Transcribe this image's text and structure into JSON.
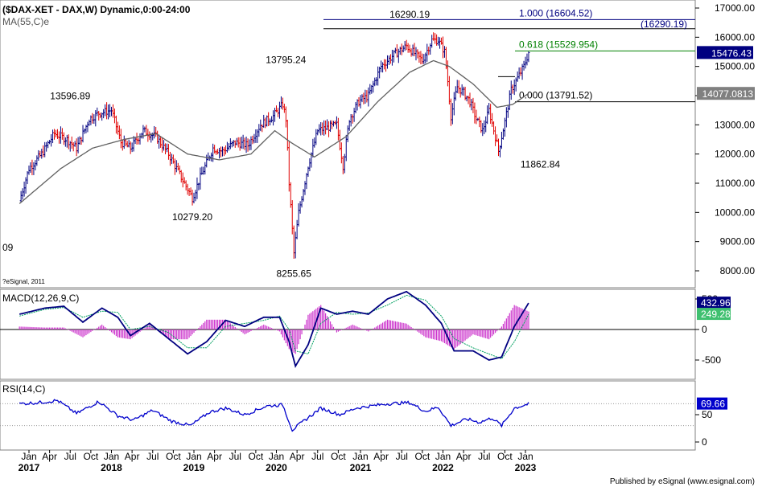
{
  "header": {
    "main_title": "($DAX-XET - DAX,W) Dynamic,0:00-24:00",
    "ma_label": "MA(55,C)e",
    "copyright": "?eSignal, 2011",
    "partial_label": "09",
    "footer": "Published by eSignal (www.esignal.com)"
  },
  "colors": {
    "up_bar": "#000080",
    "down_bar": "#e00000",
    "ma_line": "#606060",
    "fib_top": "#000080",
    "fib_mid": "#008000",
    "fib_base": "#000000",
    "macd_line": "#000080",
    "signal_line": "#00a060",
    "histogram": "#cc33cc",
    "rsi_line": "#0000cc",
    "last_price_bg": "#000080"
  },
  "price_axis": {
    "ticks": [
      "17000.00",
      "16000.00",
      "15000.00",
      "14000.00",
      "13000.00",
      "12000.00",
      "11000.00",
      "10000.00",
      "9000.00",
      "8000.00"
    ],
    "tick_values": [
      17000,
      16000,
      15000,
      14000,
      13000,
      12000,
      11000,
      10000,
      9000,
      8000
    ],
    "ylim": [
      7600,
      17200
    ],
    "last_price": "15476.43",
    "last_price_value": 15476.43,
    "ma_value": "14077.0813",
    "ma_value_num": 14077.08
  },
  "fib_levels": [
    {
      "label": "1.000 (16604.52)",
      "value": 16604.52,
      "color_key": "fib_top"
    },
    {
      "label": "0.618 (15529.954)",
      "value": 15529.954,
      "color_key": "fib_mid"
    },
    {
      "label": "0.000 (13791.52)",
      "value": 13791.52,
      "color_key": "fib_base"
    }
  ],
  "fib_aux": {
    "label": "(16290.19)",
    "value": 16290.19
  },
  "annotations": [
    {
      "text": "13596.89",
      "value": 13596.89,
      "week": 26
    },
    {
      "text": "10279.20",
      "value": 10279.2,
      "week": 103
    },
    {
      "text": "13795.24",
      "value": 13795.24,
      "week": 162
    },
    {
      "text": "8255.65",
      "value": 8255.65,
      "week": 167
    },
    {
      "text": "16290.19",
      "value": 16290.19,
      "week": 240
    },
    {
      "text": "11862.84",
      "value": 11862.84,
      "week": 296
    }
  ],
  "macd": {
    "label": "MACD(12,26,9,C)",
    "ticks": [
      "500",
      "0",
      "-500"
    ],
    "tick_values": [
      500,
      0,
      -500
    ],
    "ylim": [
      -700,
      750
    ],
    "macd_value": "432.96",
    "signal_value": "249.28"
  },
  "rsi": {
    "label": "RSI(14,C)",
    "ticks": [
      "50",
      "0"
    ],
    "tick_values": [
      50,
      0
    ],
    "ylim": [
      -5,
      100
    ],
    "value": "69.66",
    "levels": [
      70,
      30
    ]
  },
  "time_axis": {
    "month_labels": [
      {
        "text": "Jan",
        "week": 0
      },
      {
        "text": "Apr",
        "week": 13
      },
      {
        "text": "Jul",
        "week": 26
      },
      {
        "text": "Oct",
        "week": 39
      },
      {
        "text": "Jan",
        "week": 52
      },
      {
        "text": "Apr",
        "week": 65
      },
      {
        "text": "Jul",
        "week": 78
      },
      {
        "text": "Oct",
        "week": 91
      },
      {
        "text": "Jan",
        "week": 104
      },
      {
        "text": "Apr",
        "week": 117
      },
      {
        "text": "Jul",
        "week": 130
      },
      {
        "text": "Oct",
        "week": 143
      },
      {
        "text": "Jan",
        "week": 156
      },
      {
        "text": "Apr",
        "week": 169
      },
      {
        "text": "Jul",
        "week": 182
      },
      {
        "text": "Oct",
        "week": 195
      },
      {
        "text": "Jan",
        "week": 209
      },
      {
        "text": "Apr",
        "week": 222
      },
      {
        "text": "Jul",
        "week": 235
      },
      {
        "text": "Oct",
        "week": 248
      },
      {
        "text": "Jan",
        "week": 261
      },
      {
        "text": "Apr",
        "week": 274
      },
      {
        "text": "Jul",
        "week": 287
      },
      {
        "text": "Oct",
        "week": 300
      },
      {
        "text": "Jan",
        "week": 313
      }
    ],
    "year_labels": [
      {
        "text": "2017",
        "week": 0
      },
      {
        "text": "2018",
        "week": 52
      },
      {
        "text": "2019",
        "week": 104
      },
      {
        "text": "2020",
        "week": 156
      },
      {
        "text": "2021",
        "week": 209
      },
      {
        "text": "2022",
        "week": 261
      },
      {
        "text": "2023",
        "week": 313
      }
    ]
  },
  "chart_data": {
    "type": "candlestick",
    "title": "($DAX-XET - DAX,W) Dynamic,0:00-24:00",
    "frequency": "weekly",
    "x_range": [
      "Jan 2017",
      "Jan 2023"
    ],
    "ylim": [
      7600,
      17200
    ],
    "approx_path": [
      {
        "week": -6,
        "close": 10400
      },
      {
        "week": 0,
        "close": 11500
      },
      {
        "week": 8,
        "close": 12000
      },
      {
        "week": 16,
        "close": 12700
      },
      {
        "week": 24,
        "close": 12500
      },
      {
        "week": 30,
        "close": 12200
      },
      {
        "week": 38,
        "close": 13200
      },
      {
        "week": 44,
        "close": 13400
      },
      {
        "week": 52,
        "close": 13500
      },
      {
        "week": 58,
        "close": 12400
      },
      {
        "week": 64,
        "close": 12200
      },
      {
        "week": 72,
        "close": 12800
      },
      {
        "week": 80,
        "close": 12600
      },
      {
        "week": 88,
        "close": 12000
      },
      {
        "week": 96,
        "close": 11200
      },
      {
        "week": 103,
        "close": 10500
      },
      {
        "week": 108,
        "close": 11200
      },
      {
        "week": 116,
        "close": 12200
      },
      {
        "week": 122,
        "close": 12100
      },
      {
        "week": 130,
        "close": 12400
      },
      {
        "week": 138,
        "close": 12300
      },
      {
        "week": 146,
        "close": 13000
      },
      {
        "week": 154,
        "close": 13300
      },
      {
        "week": 160,
        "close": 13700
      },
      {
        "week": 162,
        "close": 13200
      },
      {
        "week": 164,
        "close": 11000
      },
      {
        "week": 167,
        "close": 8600
      },
      {
        "week": 170,
        "close": 10000
      },
      {
        "week": 176,
        "close": 11600
      },
      {
        "week": 182,
        "close": 12800
      },
      {
        "week": 188,
        "close": 12900
      },
      {
        "week": 194,
        "close": 13000
      },
      {
        "week": 198,
        "close": 11600
      },
      {
        "week": 202,
        "close": 13200
      },
      {
        "week": 208,
        "close": 13800
      },
      {
        "week": 214,
        "close": 14000
      },
      {
        "week": 222,
        "close": 15000
      },
      {
        "week": 230,
        "close": 15400
      },
      {
        "week": 238,
        "close": 15700
      },
      {
        "week": 242,
        "close": 15500
      },
      {
        "week": 248,
        "close": 15200
      },
      {
        "week": 254,
        "close": 15900
      },
      {
        "week": 258,
        "close": 15900
      },
      {
        "week": 262,
        "close": 15500
      },
      {
        "week": 264,
        "close": 14500
      },
      {
        "week": 266,
        "close": 13300
      },
      {
        "week": 270,
        "close": 14300
      },
      {
        "week": 274,
        "close": 14100
      },
      {
        "week": 278,
        "close": 13800
      },
      {
        "week": 282,
        "close": 13200
      },
      {
        "week": 286,
        "close": 12800
      },
      {
        "week": 290,
        "close": 13500
      },
      {
        "week": 294,
        "close": 12600
      },
      {
        "week": 296,
        "close": 12100
      },
      {
        "week": 300,
        "close": 13100
      },
      {
        "week": 304,
        "close": 14200
      },
      {
        "week": 308,
        "close": 14600
      },
      {
        "week": 312,
        "close": 15000
      },
      {
        "week": 315,
        "close": 15476
      }
    ],
    "ma_path": [
      {
        "week": -6,
        "v": 10300
      },
      {
        "week": 20,
        "v": 11500
      },
      {
        "week": 40,
        "v": 12200
      },
      {
        "week": 60,
        "v": 12500
      },
      {
        "week": 80,
        "v": 12700
      },
      {
        "week": 100,
        "v": 12000
      },
      {
        "week": 120,
        "v": 11800
      },
      {
        "week": 140,
        "v": 12000
      },
      {
        "week": 155,
        "v": 12800
      },
      {
        "week": 165,
        "v": 12400
      },
      {
        "week": 180,
        "v": 11900
      },
      {
        "week": 200,
        "v": 12600
      },
      {
        "week": 220,
        "v": 13800
      },
      {
        "week": 240,
        "v": 14800
      },
      {
        "week": 255,
        "v": 15200
      },
      {
        "week": 265,
        "v": 15000
      },
      {
        "week": 280,
        "v": 14400
      },
      {
        "week": 295,
        "v": 13600
      },
      {
        "week": 305,
        "v": 13700
      },
      {
        "week": 315,
        "v": 14077
      }
    ],
    "macd_path": [
      {
        "week": -6,
        "m": 250,
        "s": 220
      },
      {
        "week": 10,
        "m": 350,
        "s": 330
      },
      {
        "week": 22,
        "m": 380,
        "s": 360
      },
      {
        "week": 34,
        "m": 120,
        "s": 200
      },
      {
        "week": 46,
        "m": 350,
        "s": 300
      },
      {
        "week": 56,
        "m": 200,
        "s": 280
      },
      {
        "week": 64,
        "m": -100,
        "s": 0
      },
      {
        "week": 76,
        "m": 100,
        "s": 50
      },
      {
        "week": 88,
        "m": -150,
        "s": -50
      },
      {
        "week": 100,
        "m": -400,
        "s": -300
      },
      {
        "week": 112,
        "m": -200,
        "s": -300
      },
      {
        "week": 124,
        "m": 150,
        "s": 50
      },
      {
        "week": 136,
        "m": 50,
        "s": 100
      },
      {
        "week": 148,
        "m": 200,
        "s": 150
      },
      {
        "week": 158,
        "m": 200,
        "s": 220
      },
      {
        "week": 164,
        "m": -200,
        "s": 0
      },
      {
        "week": 168,
        "m": -600,
        "s": -350
      },
      {
        "week": 176,
        "m": -250,
        "s": -400
      },
      {
        "week": 184,
        "m": 350,
        "s": 100
      },
      {
        "week": 194,
        "m": 250,
        "s": 280
      },
      {
        "week": 204,
        "m": 300,
        "s": 250
      },
      {
        "week": 214,
        "m": 250,
        "s": 270
      },
      {
        "week": 226,
        "m": 500,
        "s": 400
      },
      {
        "week": 238,
        "m": 620,
        "s": 560
      },
      {
        "week": 250,
        "m": 400,
        "s": 480
      },
      {
        "week": 260,
        "m": 100,
        "s": 220
      },
      {
        "week": 268,
        "m": -350,
        "s": -150
      },
      {
        "week": 280,
        "m": -350,
        "s": -300
      },
      {
        "week": 290,
        "m": -500,
        "s": -400
      },
      {
        "week": 298,
        "m": -450,
        "s": -480
      },
      {
        "week": 306,
        "m": 50,
        "s": -200
      },
      {
        "week": 315,
        "m": 433,
        "s": 249
      }
    ],
    "rsi_path": [
      {
        "week": -6,
        "v": 70
      },
      {
        "week": 6,
        "v": 72
      },
      {
        "week": 18,
        "v": 76
      },
      {
        "week": 30,
        "v": 52
      },
      {
        "week": 44,
        "v": 74
      },
      {
        "week": 56,
        "v": 48
      },
      {
        "week": 66,
        "v": 40
      },
      {
        "week": 78,
        "v": 58
      },
      {
        "week": 90,
        "v": 38
      },
      {
        "week": 102,
        "v": 30
      },
      {
        "week": 114,
        "v": 55
      },
      {
        "week": 124,
        "v": 62
      },
      {
        "week": 136,
        "v": 50
      },
      {
        "week": 150,
        "v": 66
      },
      {
        "week": 160,
        "v": 68
      },
      {
        "week": 166,
        "v": 22
      },
      {
        "week": 174,
        "v": 40
      },
      {
        "week": 184,
        "v": 62
      },
      {
        "week": 196,
        "v": 50
      },
      {
        "week": 206,
        "v": 62
      },
      {
        "week": 216,
        "v": 66
      },
      {
        "week": 226,
        "v": 70
      },
      {
        "week": 240,
        "v": 72
      },
      {
        "week": 250,
        "v": 56
      },
      {
        "week": 258,
        "v": 64
      },
      {
        "week": 266,
        "v": 30
      },
      {
        "week": 276,
        "v": 42
      },
      {
        "week": 284,
        "v": 36
      },
      {
        "week": 292,
        "v": 44
      },
      {
        "week": 298,
        "v": 30
      },
      {
        "week": 306,
        "v": 62
      },
      {
        "week": 315,
        "v": 69.66
      }
    ]
  }
}
